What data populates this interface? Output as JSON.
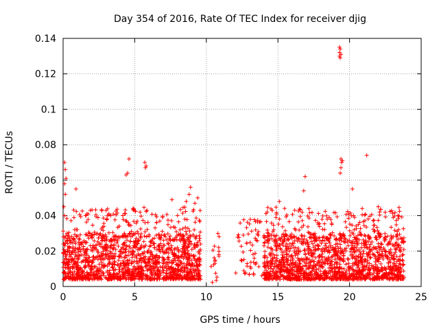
{
  "chart_data": {
    "type": "scatter",
    "title": "Day 354 of 2016, Rate Of TEC Index for receiver djig",
    "xlabel": "GPS time / hours",
    "ylabel": "ROTI / TECUs",
    "xlim": [
      0,
      25
    ],
    "ylim": [
      0,
      0.14
    ],
    "xticks": [
      0,
      5,
      10,
      15,
      20,
      25
    ],
    "xtick_labels": [
      "0",
      "5",
      "10",
      "15",
      "20",
      "25"
    ],
    "yticks": [
      0,
      0.02,
      0.04,
      0.06,
      0.08,
      0.1,
      0.12,
      0.14
    ],
    "ytick_labels": [
      "0",
      "0.02",
      "0.04",
      "0.06",
      "0.08",
      "0.1",
      "0.12",
      "0.14"
    ],
    "grid": true,
    "marker": "+",
    "series_color": "#ff0000",
    "dense_segments": [
      {
        "x_start": 0.0,
        "x_end": 9.6,
        "y_low": 0.004,
        "y_high": 0.03
      },
      {
        "x_start": 14.0,
        "x_end": 23.8,
        "y_low": 0.004,
        "y_high": 0.03
      }
    ],
    "sparse_segments": [
      {
        "x_start": 10.3,
        "x_end": 10.9,
        "y_low": 0.002,
        "y_high": 0.03
      },
      {
        "x_start": 12.0,
        "x_end": 13.9,
        "y_low": 0.006,
        "y_high": 0.038
      }
    ],
    "outliers": [
      {
        "x": 0.1,
        "y": 0.07
      },
      {
        "x": 0.15,
        "y": 0.066
      },
      {
        "x": 0.2,
        "y": 0.061
      },
      {
        "x": 0.1,
        "y": 0.058
      },
      {
        "x": 0.15,
        "y": 0.052
      },
      {
        "x": 0.05,
        "y": 0.045
      },
      {
        "x": 0.1,
        "y": 0.04
      },
      {
        "x": 0.9,
        "y": 0.055
      },
      {
        "x": 1.9,
        "y": 0.043
      },
      {
        "x": 4.6,
        "y": 0.072
      },
      {
        "x": 4.5,
        "y": 0.064
      },
      {
        "x": 4.4,
        "y": 0.063
      },
      {
        "x": 5.7,
        "y": 0.07
      },
      {
        "x": 5.8,
        "y": 0.068
      },
      {
        "x": 5.75,
        "y": 0.067
      },
      {
        "x": 8.9,
        "y": 0.056
      },
      {
        "x": 8.8,
        "y": 0.052
      },
      {
        "x": 9.4,
        "y": 0.05
      },
      {
        "x": 8.6,
        "y": 0.048
      },
      {
        "x": 7.6,
        "y": 0.049
      },
      {
        "x": 9.2,
        "y": 0.047
      },
      {
        "x": 16.9,
        "y": 0.062
      },
      {
        "x": 16.8,
        "y": 0.054
      },
      {
        "x": 15.1,
        "y": 0.048
      },
      {
        "x": 19.3,
        "y": 0.135
      },
      {
        "x": 19.35,
        "y": 0.134
      },
      {
        "x": 19.3,
        "y": 0.132
      },
      {
        "x": 19.4,
        "y": 0.131
      },
      {
        "x": 19.3,
        "y": 0.13
      },
      {
        "x": 19.35,
        "y": 0.129
      },
      {
        "x": 19.4,
        "y": 0.072
      },
      {
        "x": 19.5,
        "y": 0.071
      },
      {
        "x": 19.45,
        "y": 0.07
      },
      {
        "x": 19.4,
        "y": 0.067
      },
      {
        "x": 19.35,
        "y": 0.064
      },
      {
        "x": 21.2,
        "y": 0.074
      },
      {
        "x": 20.2,
        "y": 0.055
      },
      {
        "x": 22.0,
        "y": 0.045
      },
      {
        "x": 22.1,
        "y": 0.042
      }
    ]
  }
}
